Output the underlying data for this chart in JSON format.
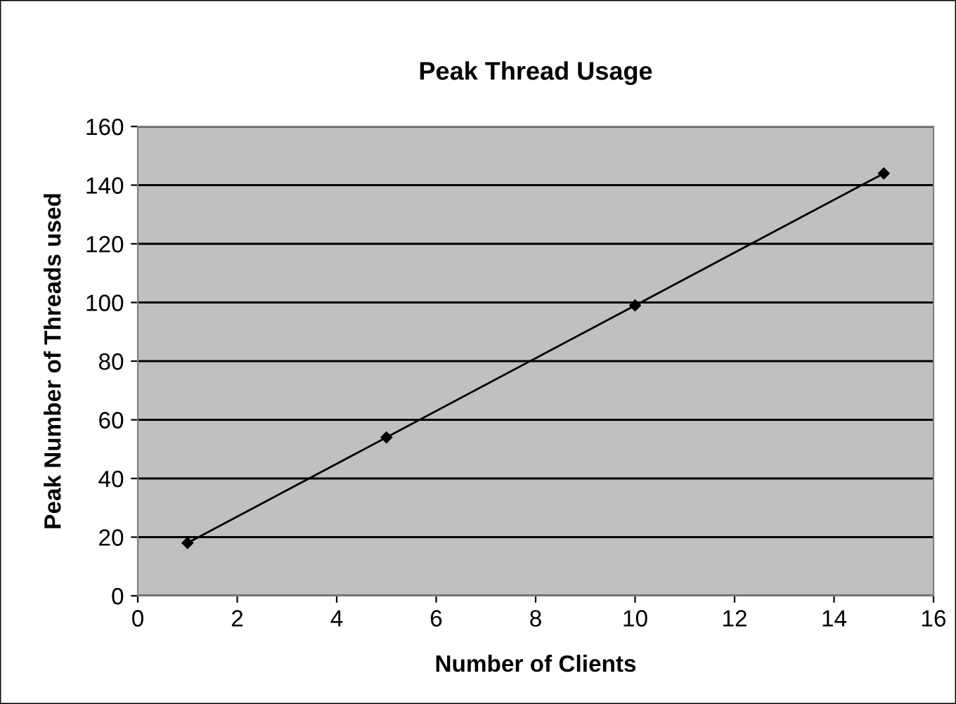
{
  "chart_data": {
    "type": "line",
    "title": "Peak Thread Usage",
    "xlabel": "Number of Clients",
    "ylabel": "Peak Number of Threads used",
    "x": [
      1,
      5,
      10,
      15
    ],
    "series": [
      {
        "color": "#000000",
        "values": [
          18,
          54,
          99,
          144
        ]
      }
    ],
    "xlim": [
      0,
      16
    ],
    "xticks": [
      0,
      2,
      4,
      6,
      8,
      10,
      12,
      14,
      16
    ],
    "ylim": [
      0,
      160
    ],
    "yticks": [
      0,
      20,
      40,
      60,
      80,
      100,
      120,
      140,
      160
    ],
    "grid": "y",
    "marker": "diamond",
    "line_style": "solid",
    "legend": false
  }
}
